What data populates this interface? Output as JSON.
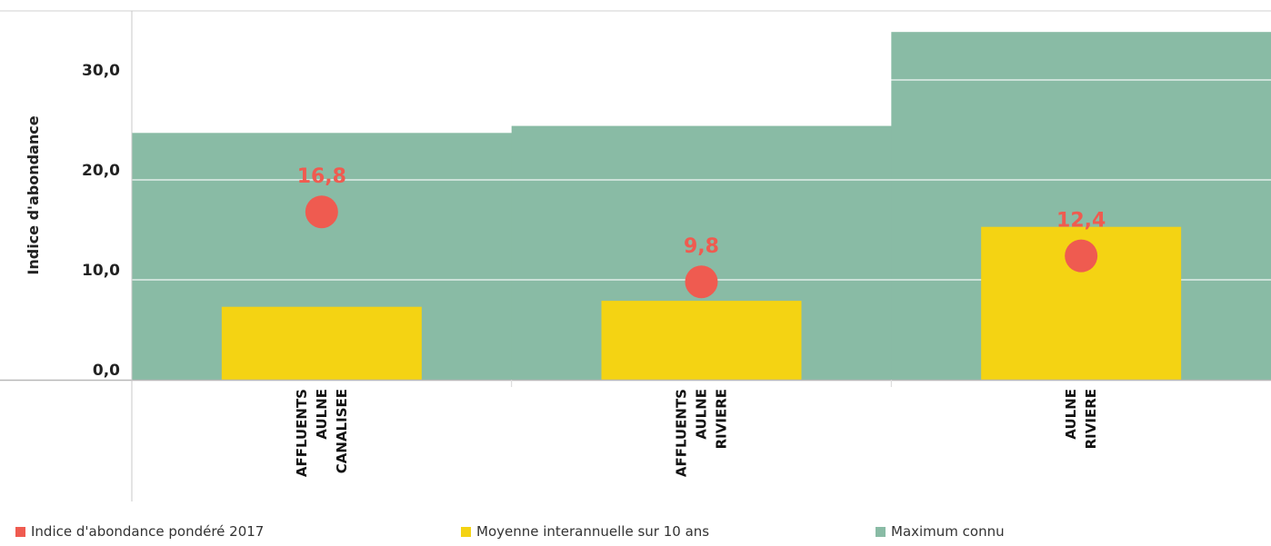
{
  "chart_data": {
    "type": "bar",
    "title": "",
    "xlabel": "",
    "ylabel": "Indice d'abondance",
    "categories": [
      [
        "AFFLUENTS",
        "AULNE",
        "CANALISEE"
      ],
      [
        "AFFLUENTS",
        "AULNE",
        "RIVIERE"
      ],
      [
        "AULNE",
        "RIVIERE"
      ]
    ],
    "ylim": [
      0,
      35
    ],
    "yticks": [
      "0,0",
      "10,0",
      "20,0",
      "30,0"
    ],
    "ytick_values": [
      0,
      10,
      20,
      30
    ],
    "grid": true,
    "legend_position": "bottom",
    "series": [
      {
        "name": "Indice d'abondance pondéré 2017",
        "type": "scatter",
        "color": "#ef5b50",
        "values": [
          16.8,
          9.8,
          12.4
        ],
        "labels": [
          "16,8",
          "9,8",
          "12,4"
        ]
      },
      {
        "name": "Moyenne interannuelle sur 10 ans",
        "type": "bar",
        "color": "#f4d313",
        "values": [
          7.3,
          7.9,
          15.3
        ]
      },
      {
        "name": "Maximum connu",
        "type": "area-step",
        "color": "#89bba5",
        "values": [
          24.7,
          25.4,
          34.8
        ]
      }
    ]
  }
}
